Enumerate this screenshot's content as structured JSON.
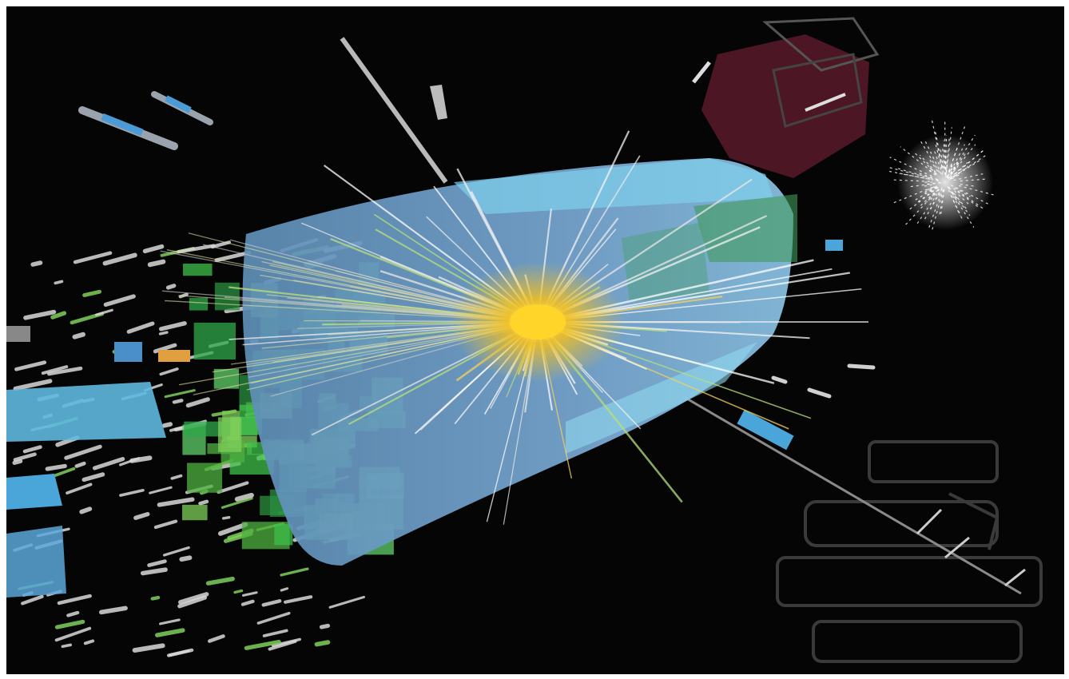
{
  "colors": {
    "background": "#050506",
    "calorimeter_blue": "#6f9fcb",
    "calorimeter_cyan": "#5fc0e0",
    "hadronic_green": "#3fbf4a",
    "core_yellow": "#f2c020",
    "muon_red": "#6a1f2e",
    "track_white": "#e8e8e8"
  },
  "scene": {
    "subject": "particle-collision-event-display"
  }
}
